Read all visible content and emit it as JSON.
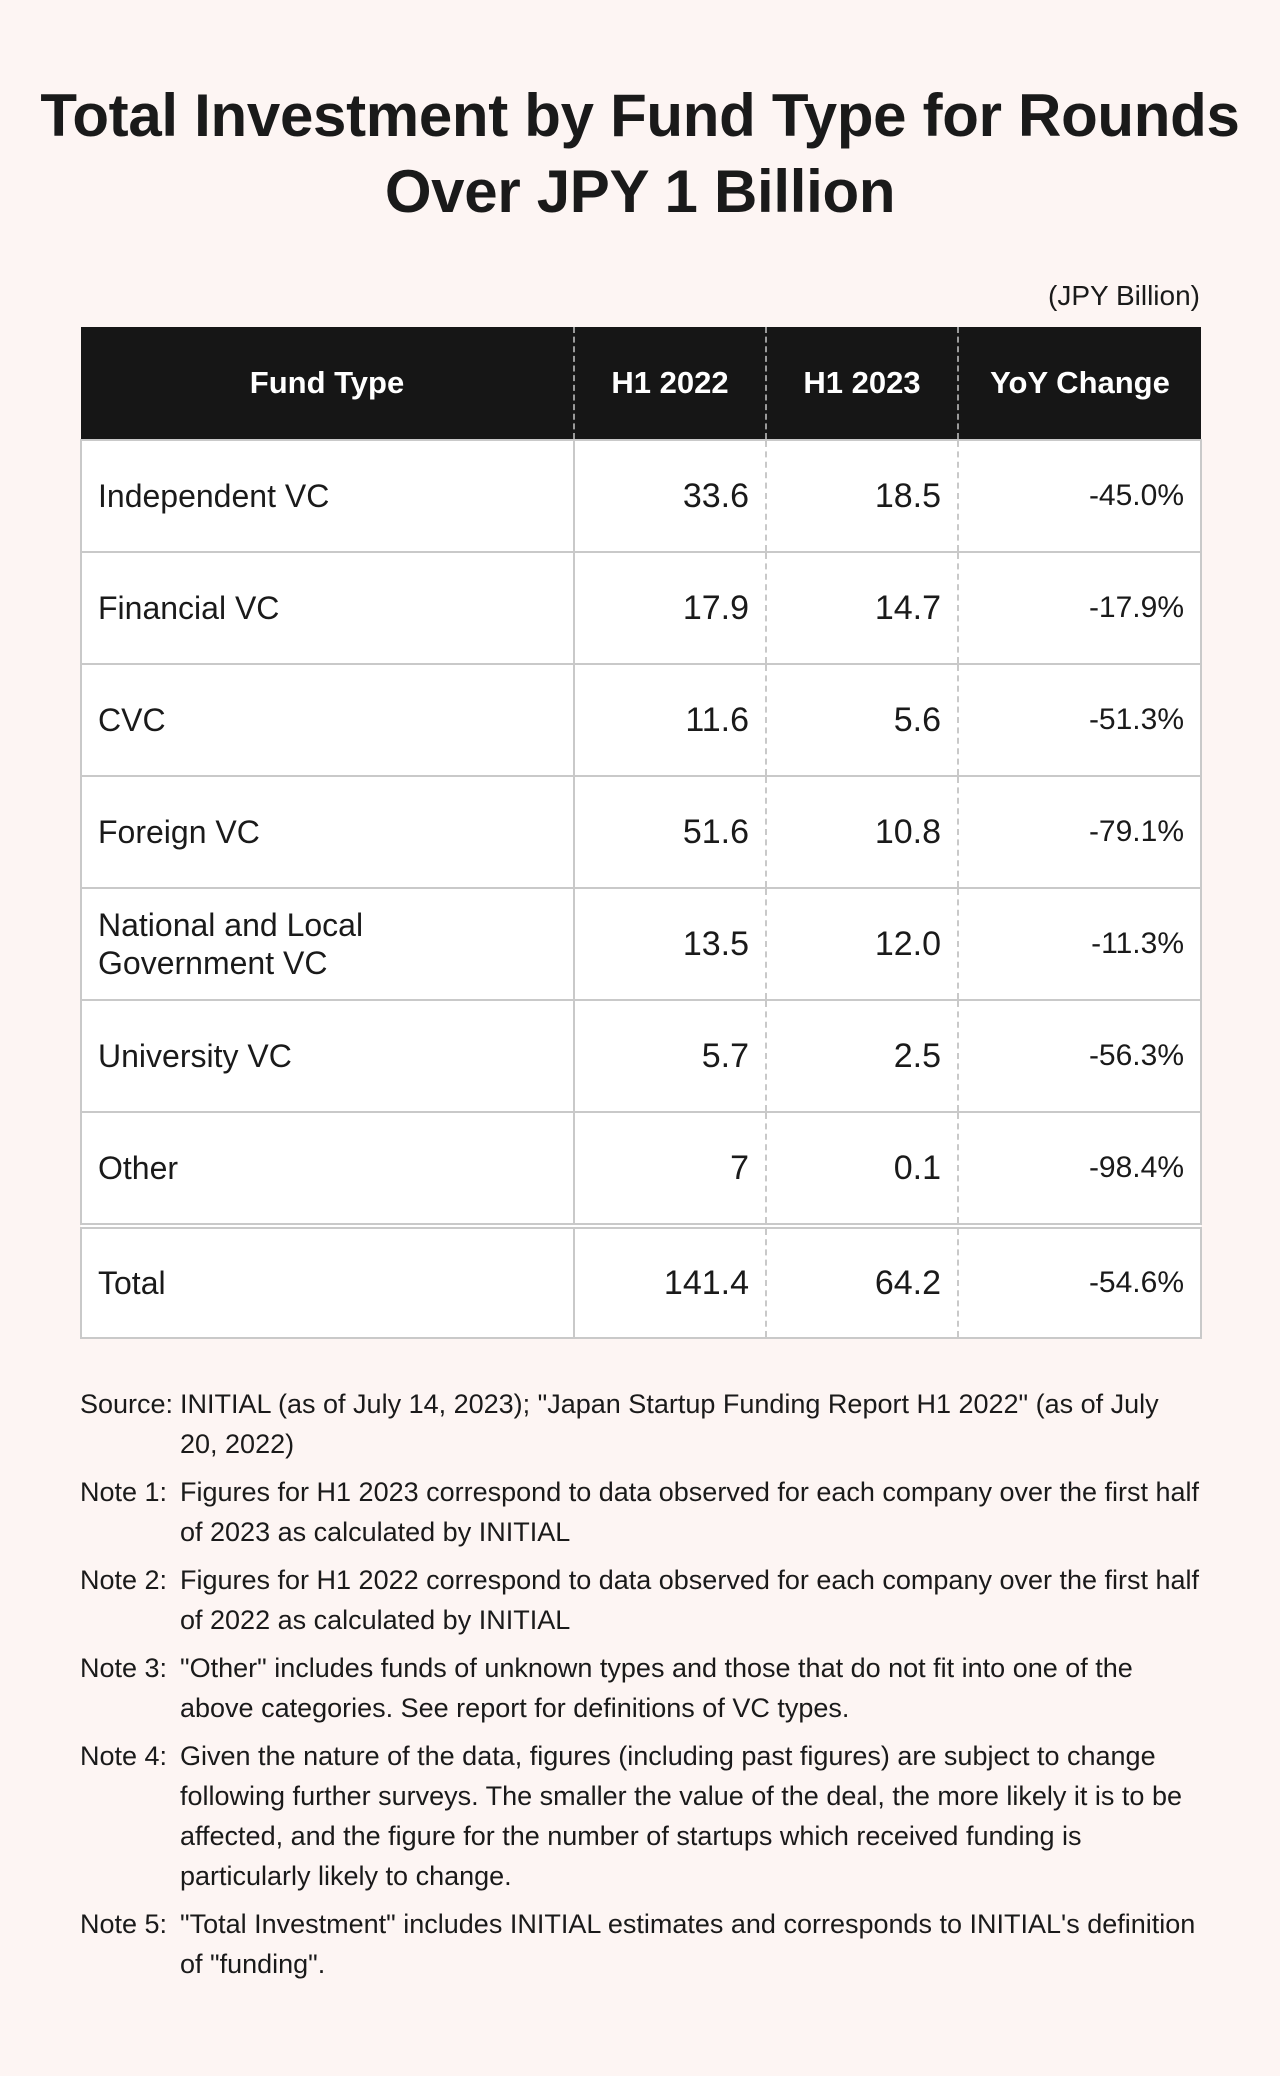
{
  "chart_data": {
    "type": "table",
    "title": "Total Investment by Fund Type for Rounds Over JPY 1 Billion",
    "unit_label": "(JPY Billion)",
    "columns": [
      "Fund Type",
      "H1 2022",
      "H1 2023",
      "YoY Change"
    ],
    "rows": [
      {
        "fund_type": "Independent VC",
        "h1_2022": "33.6",
        "h1_2023": "18.5",
        "yoy": "-45.0%"
      },
      {
        "fund_type": "Financial VC",
        "h1_2022": "17.9",
        "h1_2023": "14.7",
        "yoy": "-17.9%"
      },
      {
        "fund_type": "CVC",
        "h1_2022": "11.6",
        "h1_2023": "5.6",
        "yoy": "-51.3%"
      },
      {
        "fund_type": "Foreign VC",
        "h1_2022": "51.6",
        "h1_2023": "10.8",
        "yoy": "-79.1%"
      },
      {
        "fund_type": "National and Local Government VC",
        "h1_2022": "13.5",
        "h1_2023": "12.0",
        "yoy": "-11.3%"
      },
      {
        "fund_type": "University VC",
        "h1_2022": "5.7",
        "h1_2023": "2.5",
        "yoy": "-56.3%"
      },
      {
        "fund_type": "Other",
        "h1_2022": "7",
        "h1_2023": "0.1",
        "yoy": "-98.4%"
      }
    ],
    "total": {
      "fund_type": "Total",
      "h1_2022": "141.4",
      "h1_2023": "64.2",
      "yoy": "-54.6%"
    }
  },
  "notes": [
    {
      "key": "Source:",
      "text": "INITIAL (as of July 14, 2023); \"Japan Startup Funding Report H1 2022\" (as of July 20, 2022)"
    },
    {
      "key": "Note 1:",
      "text": "Figures for H1 2023 correspond to data observed for each company over the first half of 2023 as calculated by INITIAL"
    },
    {
      "key": "Note 2:",
      "text": "Figures for H1 2022 correspond to data observed for each company over the first half of 2022 as calculated by INITIAL"
    },
    {
      "key": "Note 3:",
      "text": "\"Other\" includes funds of unknown types and those that do not fit into one of the above categories. See report for definitions of VC types."
    },
    {
      "key": "Note 4:",
      "text": "Given the nature of the data, figures (including past figures) are subject to change following further surveys. The smaller the value of the deal, the more likely it is to be affected, and the figure for the number of startups which received funding is particularly likely to change."
    },
    {
      "key": "Note 5:",
      "text": "\"Total Investment\" includes INITIAL estimates and corresponds to INITIAL's definition of \"funding\"."
    }
  ],
  "colors": {
    "background": "#fdf5f3",
    "header_bg": "#161616",
    "header_text": "#ffffff",
    "border": "#c9c9c9"
  }
}
